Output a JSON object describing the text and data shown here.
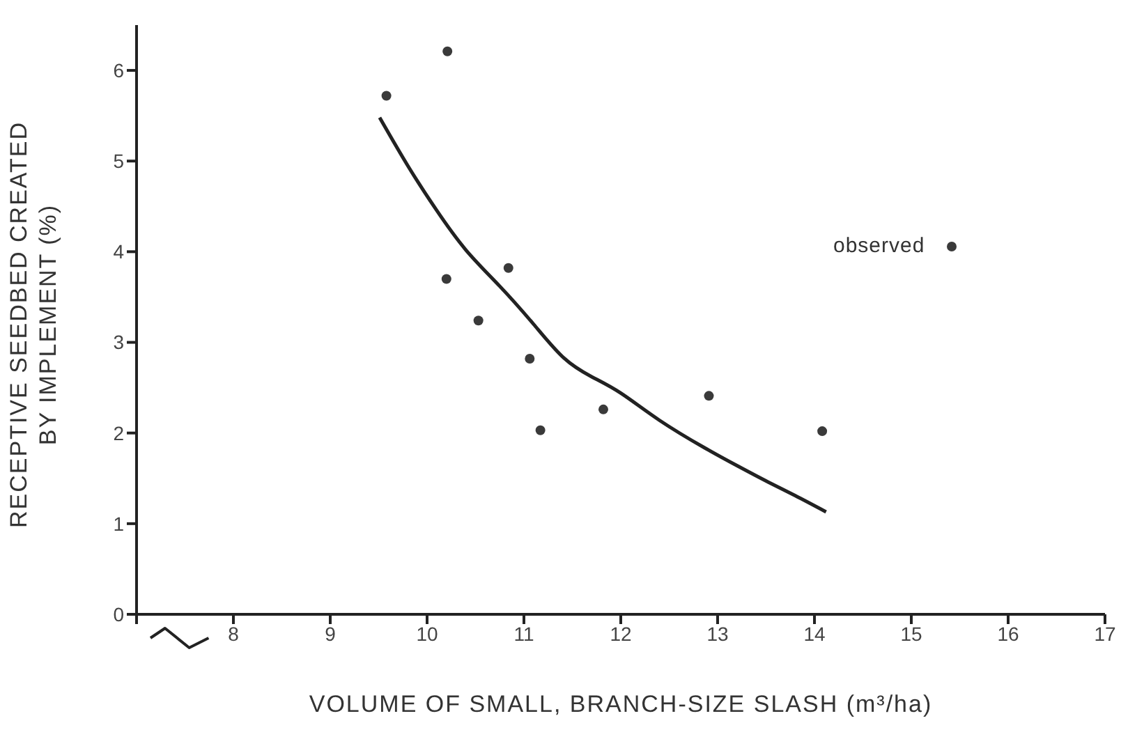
{
  "chart_data": {
    "type": "scatter",
    "xlabel": "VOLUME OF SMALL, BRANCH-SIZE SLASH (m³/ha)",
    "ylabel": "RECEPTIVE SEEDBED CREATED\nBY IMPLEMENT (%)",
    "xlim": [
      7,
      17
    ],
    "xticks": [
      {
        "value": 7,
        "label": null
      },
      8,
      9,
      10,
      11,
      12,
      13,
      14,
      15,
      16,
      17
    ],
    "ylim": [
      0,
      6.5
    ],
    "yticks": [
      0,
      1,
      2,
      3,
      4,
      5,
      6
    ],
    "grid": false,
    "legend": "top right",
    "marker": "circle",
    "series": [
      {
        "name": "observed",
        "color": "#3a3a3a",
        "x": [
          9.58,
          10.21,
          10.2,
          10.84,
          10.53,
          11.06,
          11.17,
          11.82,
          12.91,
          14.08
        ],
        "values": [
          5.72,
          6.21,
          3.7,
          3.82,
          3.24,
          2.82,
          2.03,
          2.26,
          2.41,
          2.02
        ]
      },
      {
        "type": "line",
        "color": "#222222",
        "x": [
          9.51,
          9.8,
          10.09,
          10.4,
          10.75,
          11.1,
          11.41,
          11.7,
          12.0,
          12.4,
          12.86,
          13.2,
          13.52,
          13.8,
          14.12
        ],
        "values": [
          5.48,
          4.95,
          4.47,
          4.02,
          3.62,
          3.2,
          2.83,
          2.62,
          2.44,
          2.14,
          1.84,
          1.64,
          1.46,
          1.31,
          1.13
        ],
        "line_style": "solid",
        "marker": "none"
      }
    ]
  }
}
